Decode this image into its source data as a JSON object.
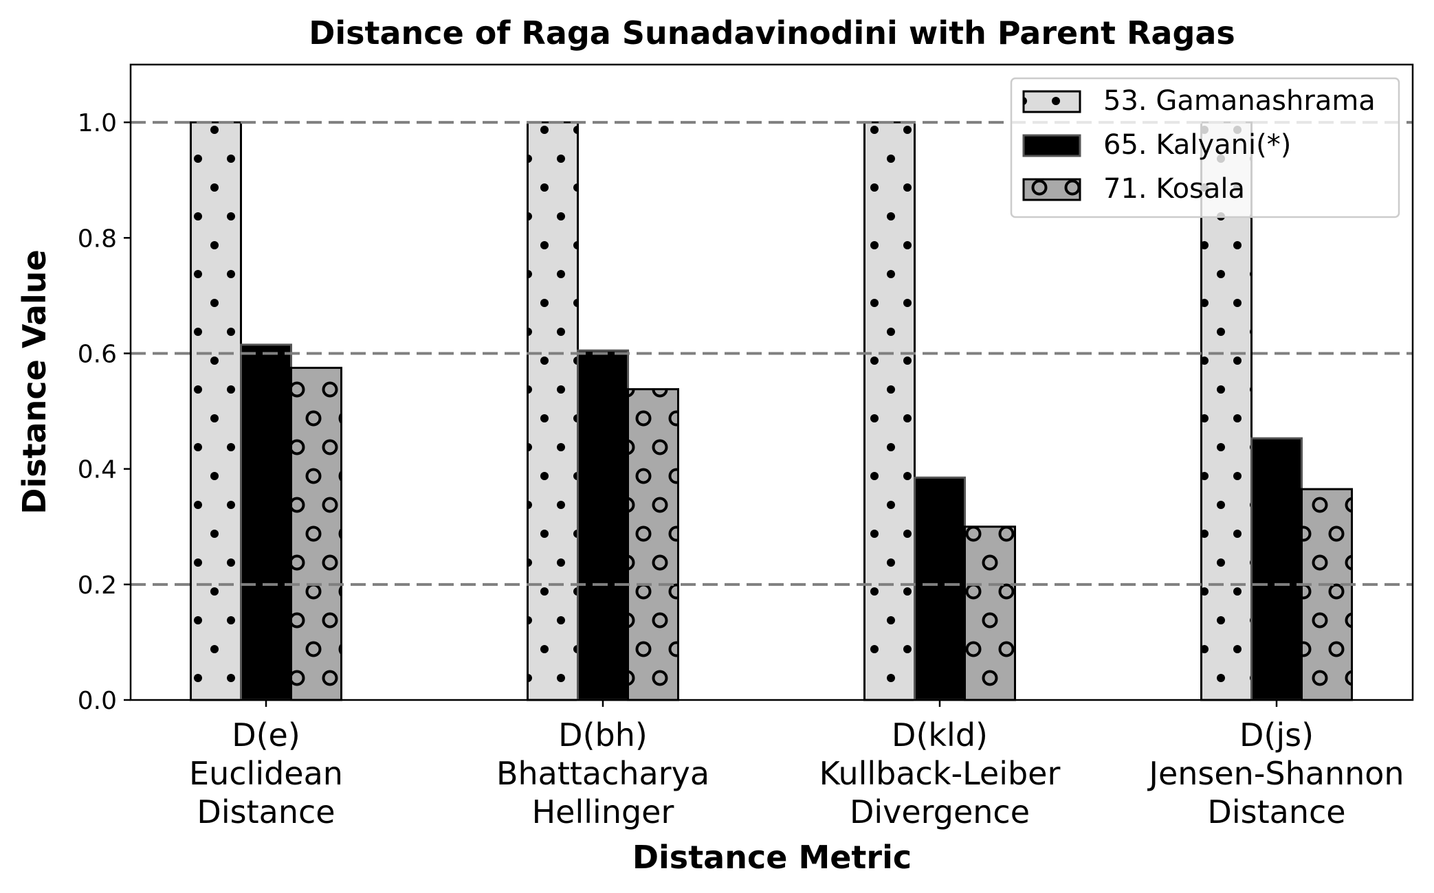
{
  "chart_data": {
    "type": "bar",
    "title": "Distance of Raga Sunadavinodini with Parent Ragas",
    "xlabel": "Distance Metric",
    "ylabel": "Distance Value",
    "ylim": [
      0,
      1.1
    ],
    "yticks": [
      0.0,
      0.2,
      0.4,
      0.6,
      0.8,
      1.0
    ],
    "ytick_labels": [
      "0.0",
      "0.2",
      "0.4",
      "0.6",
      "0.8",
      "1.0"
    ],
    "hlines": [
      0.2,
      0.6,
      1.0
    ],
    "grid": false,
    "legend_position": "top-right",
    "categories": [
      [
        "D(e)",
        "Euclidean",
        "Distance"
      ],
      [
        "D(bh)",
        "Bhattacharya",
        "Hellinger"
      ],
      [
        "D(kld)",
        "Kullback-Leiber",
        "Divergence"
      ],
      [
        "D(js)",
        "Jensen-Shannon",
        "Distance"
      ]
    ],
    "series": [
      {
        "name": "53. Gamanashrama",
        "values": [
          1.0,
          1.0,
          1.0,
          1.0
        ],
        "color": "#dcdcdc",
        "pattern": "dots"
      },
      {
        "name": "65. Kalyani(*)",
        "values": [
          0.615,
          0.605,
          0.385,
          0.453
        ],
        "color": "#000000",
        "pattern": "solid"
      },
      {
        "name": "71. Kosala",
        "values": [
          0.575,
          0.538,
          0.3,
          0.365
        ],
        "color": "#a9a9a9",
        "pattern": "circles"
      }
    ]
  }
}
